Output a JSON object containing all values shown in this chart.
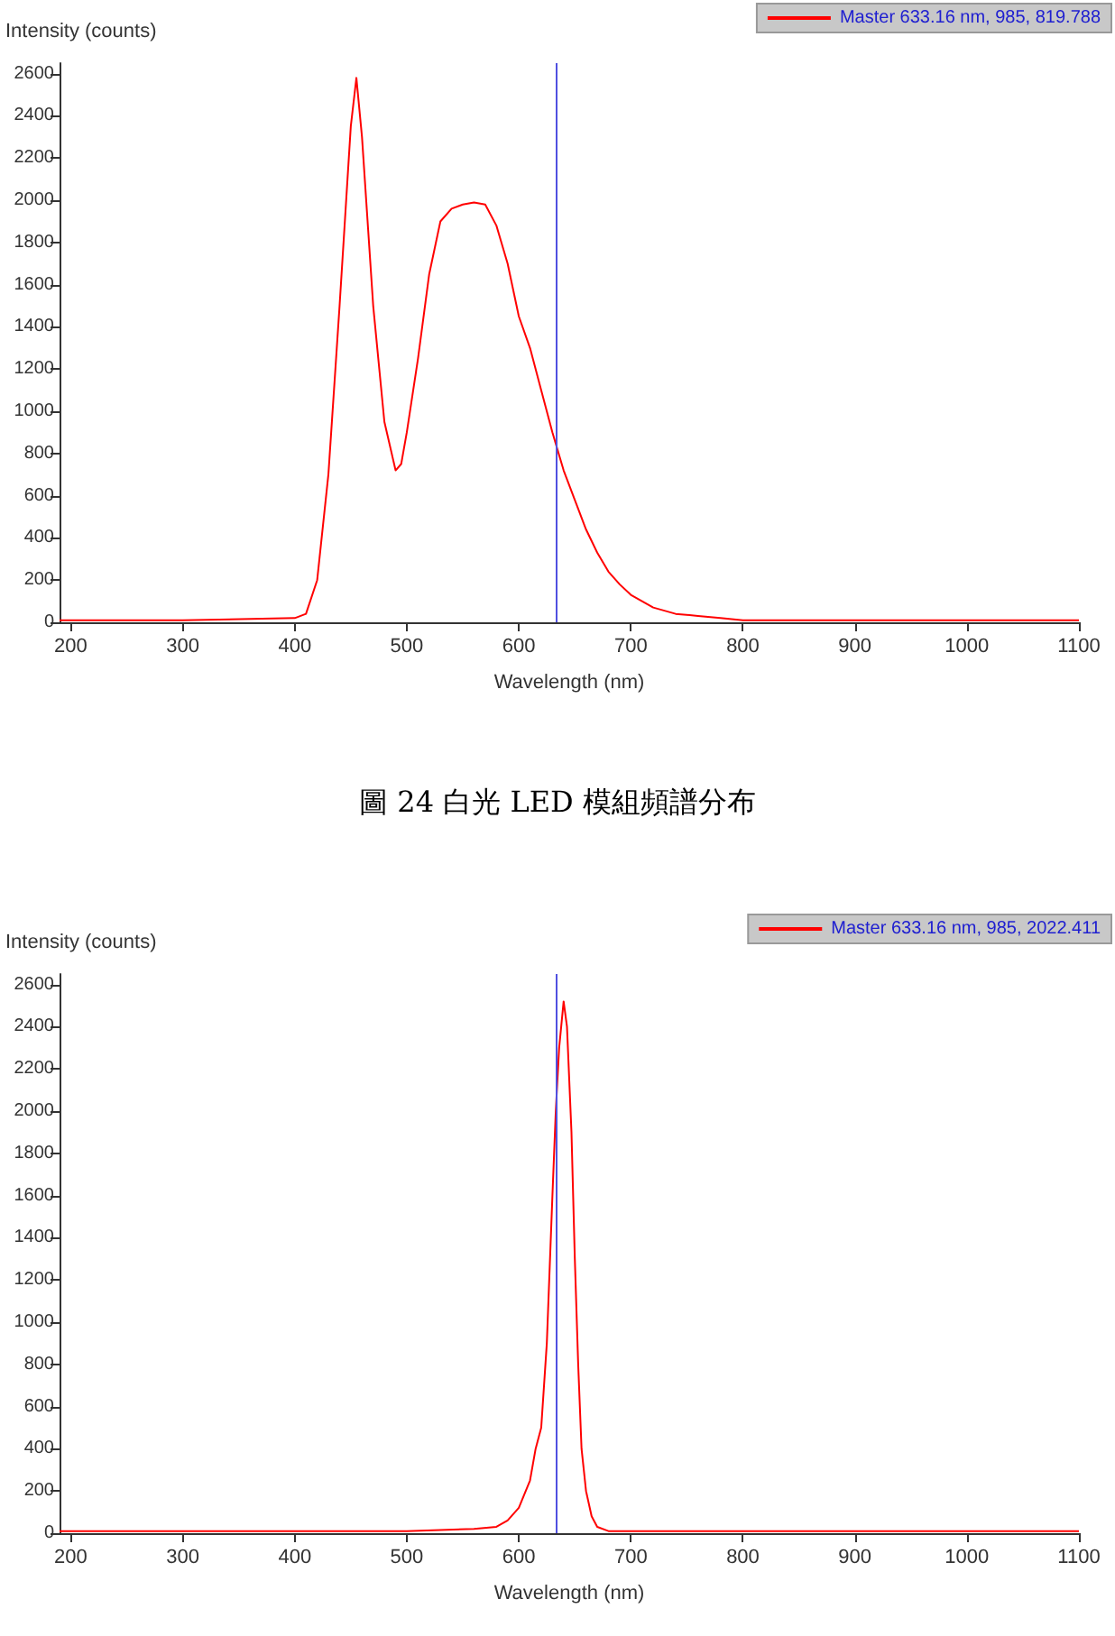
{
  "chart_data": [
    {
      "type": "line",
      "ylabel": "Intensity (counts)",
      "xlabel": "Wavelength (nm)",
      "xlim": [
        190,
        1100
      ],
      "ylim": [
        0,
        2650
      ],
      "xticks": [
        200,
        300,
        400,
        500,
        600,
        700,
        800,
        900,
        1000,
        1100
      ],
      "yticks": [
        0,
        200,
        400,
        600,
        800,
        1000,
        1200,
        1400,
        1600,
        1800,
        2000,
        2200,
        2400,
        2600
      ],
      "grid": false,
      "legend": "top right",
      "marker": "none",
      "line_style": "solid",
      "ref_lines": [
        {
          "axis": "x",
          "value": 633.16,
          "label": null,
          "color": "#5050e0"
        }
      ],
      "annotations": [
        "圖 24  白光 LED 模組頻譜分布"
      ],
      "series": [
        {
          "name": "Master 633.16 nm, 985, 819.788",
          "color": "#ff0000",
          "x": [
            190,
            300,
            400,
            410,
            420,
            430,
            440,
            450,
            455,
            460,
            470,
            480,
            490,
            495,
            500,
            510,
            520,
            530,
            540,
            550,
            560,
            570,
            580,
            590,
            600,
            610,
            620,
            630,
            640,
            650,
            660,
            670,
            680,
            690,
            700,
            720,
            740,
            760,
            780,
            800,
            900,
            1000,
            1100
          ],
          "values": [
            10,
            10,
            20,
            40,
            200,
            700,
            1500,
            2350,
            2580,
            2300,
            1500,
            950,
            720,
            750,
            900,
            1250,
            1650,
            1900,
            1960,
            1980,
            1990,
            1980,
            1880,
            1700,
            1450,
            1300,
            1100,
            900,
            720,
            580,
            440,
            330,
            240,
            180,
            130,
            70,
            40,
            30,
            20,
            10,
            10,
            10,
            10
          ]
        }
      ]
    },
    {
      "type": "line",
      "ylabel": "Intensity (counts)",
      "xlabel": "Wavelength (nm)",
      "xlim": [
        190,
        1100
      ],
      "ylim": [
        0,
        2650
      ],
      "xticks": [
        200,
        300,
        400,
        500,
        600,
        700,
        800,
        900,
        1000,
        1100
      ],
      "yticks": [
        0,
        200,
        400,
        600,
        800,
        1000,
        1200,
        1400,
        1600,
        1800,
        2000,
        2200,
        2400,
        2600
      ],
      "grid": false,
      "legend": "top right",
      "marker": "none",
      "line_style": "solid",
      "ref_lines": [
        {
          "axis": "x",
          "value": 633.16,
          "label": null,
          "color": "#5050e0"
        }
      ],
      "series": [
        {
          "name": "Master 633.16 nm, 985, 2022.411",
          "color": "#ff0000",
          "x": [
            190,
            500,
            560,
            580,
            590,
            600,
            610,
            615,
            620,
            625,
            630,
            633,
            636,
            640,
            643,
            647,
            650,
            653,
            656,
            660,
            665,
            670,
            680,
            700,
            1100
          ],
          "values": [
            10,
            10,
            20,
            30,
            60,
            120,
            250,
            400,
            500,
            900,
            1600,
            2000,
            2300,
            2520,
            2400,
            1900,
            1300,
            800,
            400,
            200,
            80,
            30,
            10,
            10,
            10
          ]
        }
      ]
    }
  ]
}
